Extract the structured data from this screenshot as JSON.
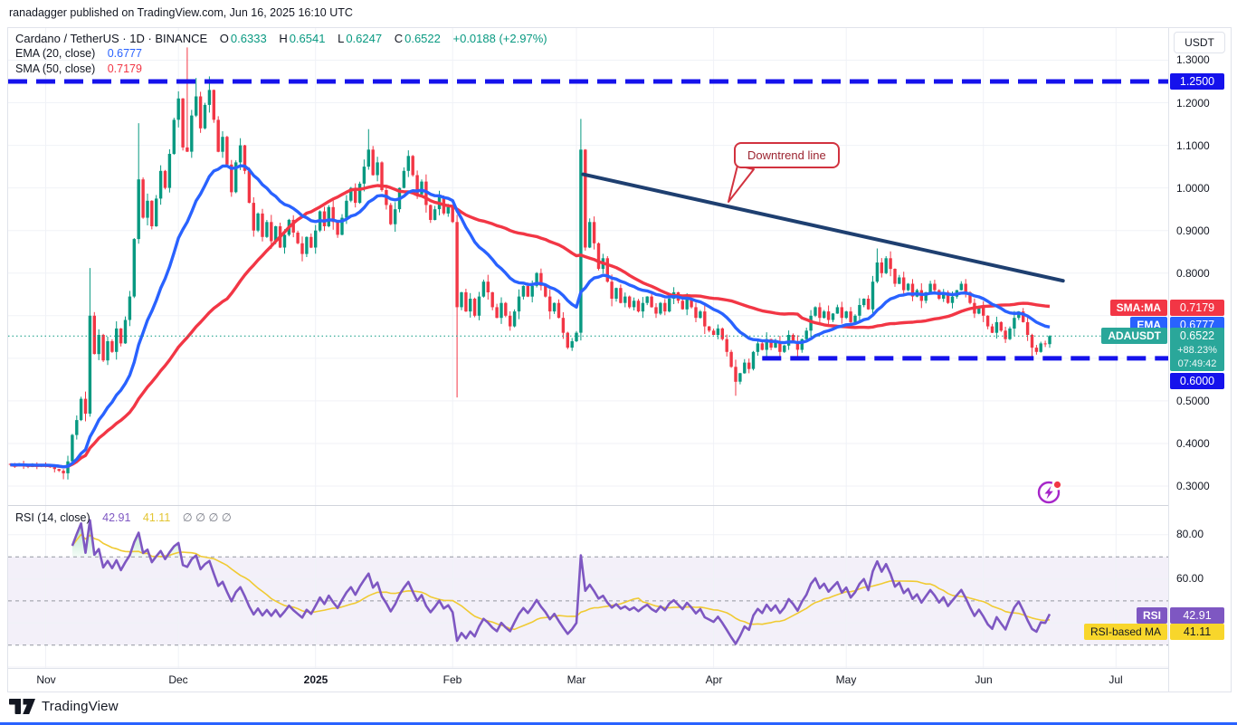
{
  "publish": {
    "text": "ranadagger published on TradingView.com, Jun 16, 2025 16:10 UTC"
  },
  "legend": {
    "title": "Cardano / TetherUS · 1D · BINANCE",
    "o_label": "O",
    "o": "0.6333",
    "h_label": "H",
    "h": "0.6541",
    "l_label": "L",
    "l": "0.6247",
    "c_label": "C",
    "c": "0.6522",
    "change": "+0.0188 (+2.97%)",
    "ema_label": "EMA (20, close)",
    "ema_value": "0.6777",
    "sma_label": "SMA (50, close)",
    "sma_value": "0.7179"
  },
  "rsi_legend": {
    "label": "RSI (14, close)",
    "value": "42.91",
    "ma_value": "41.11",
    "empties": "∅ ∅ ∅ ∅"
  },
  "callout": {
    "text": "Downtrend line"
  },
  "axis": {
    "currency": "USDT",
    "resistance_label": "1.2500",
    "support_label": "0.6000",
    "sma_tag": "SMA:MA",
    "sma_value": "0.7179",
    "ema_tag": "EMA",
    "ema_value": "0.6777",
    "symbol_tag": "ADAUSDT",
    "price": "0.6522",
    "change_pct": "+88.23%",
    "countdown": "07:49:42",
    "rsi_tag": "RSI",
    "rsi_value": "42.91",
    "rsi_ma_tag": "RSI-based MA",
    "rsi_ma_value": "41.11"
  },
  "footer": {
    "brand": "TradingView"
  },
  "chart_data": {
    "type": "candlestick",
    "title": "Cardano / TetherUS · 1D · BINANCE",
    "symbol": "ADAUSDT",
    "interval": "1D",
    "ohlc_last": {
      "open": 0.6333,
      "high": 0.6541,
      "low": 0.6247,
      "close": 0.6522,
      "change_abs": "+0.0188",
      "change_pct": "+2.97%"
    },
    "ylim": [
      0.2554,
      1.3754
    ],
    "xlim_days": [
      -0.5,
      261.8
    ],
    "grid_prices": [
      1.3,
      1.2,
      1.1,
      1.0,
      0.9,
      0.8,
      0.7,
      0.6,
      0.5,
      0.4,
      0.3
    ],
    "price_ticks": [
      [
        1.3,
        "1.3000"
      ],
      [
        1.2,
        "1.2000"
      ],
      [
        1.1,
        "1.1000"
      ],
      [
        1.0,
        "1.0000"
      ],
      [
        0.9,
        "0.9000"
      ],
      [
        0.8,
        "0.8000"
      ],
      [
        0.5,
        "0.5000"
      ],
      [
        0.4,
        "0.4000"
      ],
      [
        0.3,
        "0.3000"
      ]
    ],
    "months": [
      {
        "label": "Nov",
        "day": 8
      },
      {
        "label": "Dec",
        "day": 38
      },
      {
        "label": "2025",
        "day": 69,
        "bold": true
      },
      {
        "label": "Feb",
        "day": 100
      },
      {
        "label": "Mar",
        "day": 128
      },
      {
        "label": "Apr",
        "day": 159
      },
      {
        "label": "May",
        "day": 189
      },
      {
        "label": "Jun",
        "day": 220
      },
      {
        "label": "Jul",
        "day": 250
      }
    ],
    "open_first": 0.352,
    "closes": [
      0.35,
      0.347,
      0.352,
      0.348,
      0.345,
      0.35,
      0.346,
      0.351,
      0.348,
      0.344,
      0.34,
      0.336,
      0.33,
      0.358,
      0.42,
      0.455,
      0.505,
      0.47,
      0.7,
      0.61,
      0.655,
      0.595,
      0.64,
      0.615,
      0.67,
      0.635,
      0.69,
      0.745,
      0.88,
      1.02,
      0.93,
      0.97,
      0.91,
      0.975,
      1.04,
      1.0,
      1.08,
      1.16,
      1.21,
      1.095,
      1.085,
      1.17,
      1.215,
      1.14,
      1.195,
      1.23,
      1.16,
      1.085,
      1.12,
      1.055,
      0.99,
      1.06,
      1.1,
      1.04,
      0.965,
      0.9,
      0.94,
      0.885,
      0.92,
      0.875,
      0.91,
      0.86,
      0.89,
      0.925,
      0.895,
      0.87,
      0.845,
      0.885,
      0.86,
      0.9,
      0.945,
      0.91,
      0.955,
      0.92,
      0.89,
      0.93,
      0.97,
      1.0,
      0.965,
      1.01,
      1.05,
      1.09,
      1.03,
      1.06,
      0.995,
      0.96,
      0.915,
      0.95,
      1.0,
      1.04,
      1.075,
      1.03,
      0.985,
      1.015,
      0.96,
      0.925,
      0.95,
      0.98,
      0.94,
      0.955,
      0.92,
      0.72,
      0.755,
      0.71,
      0.74,
      0.7,
      0.745,
      0.78,
      0.755,
      0.72,
      0.695,
      0.73,
      0.7,
      0.675,
      0.71,
      0.745,
      0.77,
      0.745,
      0.77,
      0.8,
      0.77,
      0.745,
      0.71,
      0.73,
      0.695,
      0.66,
      0.625,
      0.64,
      0.66,
      1.09,
      0.86,
      0.92,
      0.87,
      0.81,
      0.835,
      0.78,
      0.74,
      0.765,
      0.73,
      0.745,
      0.72,
      0.735,
      0.71,
      0.73,
      0.745,
      0.72,
      0.705,
      0.73,
      0.71,
      0.74,
      0.755,
      0.735,
      0.715,
      0.74,
      0.72,
      0.695,
      0.71,
      0.675,
      0.665,
      0.655,
      0.67,
      0.645,
      0.615,
      0.58,
      0.545,
      0.565,
      0.59,
      0.575,
      0.615,
      0.635,
      0.62,
      0.645,
      0.625,
      0.64,
      0.615,
      0.63,
      0.655,
      0.64,
      0.62,
      0.645,
      0.665,
      0.7,
      0.72,
      0.695,
      0.71,
      0.69,
      0.705,
      0.72,
      0.695,
      0.71,
      0.685,
      0.7,
      0.725,
      0.74,
      0.715,
      0.78,
      0.825,
      0.8,
      0.835,
      0.81,
      0.775,
      0.79,
      0.76,
      0.775,
      0.745,
      0.76,
      0.735,
      0.755,
      0.775,
      0.76,
      0.74,
      0.755,
      0.73,
      0.745,
      0.76,
      0.775,
      0.755,
      0.73,
      0.705,
      0.72,
      0.7,
      0.675,
      0.66,
      0.685,
      0.665,
      0.645,
      0.67,
      0.695,
      0.71,
      0.685,
      0.655,
      0.625,
      0.615,
      0.635,
      0.6333,
      0.6522
    ],
    "wick_up": [
      0.2,
      0.9,
      0.4,
      1.4,
      0.1,
      0.7,
      1.1
    ],
    "wick_dn": [
      0.6,
      0.1,
      1.2,
      0.3,
      0.9,
      0.2,
      1.5
    ],
    "overrides": {
      "12": {
        "l": 0.316
      },
      "18": {
        "h": 0.812
      },
      "29": {
        "h": 1.152
      },
      "40": {
        "h": 1.33
      },
      "42": {
        "h": 1.258
      },
      "45": {
        "h": 1.262
      },
      "81": {
        "h": 1.138
      },
      "101": {
        "l": 0.508
      },
      "129": {
        "h": 1.162
      },
      "164": {
        "l": 0.512
      },
      "196": {
        "h": 0.858
      },
      "231": {
        "l": 0.598
      },
      "235": {
        "h": 0.6541,
        "l": 0.6247
      }
    },
    "levels": {
      "resistance": 1.25,
      "support": 0.6,
      "support_from_day": 170,
      "current_price": 0.6522,
      "current_change_pct": "+88.23%",
      "bar_countdown": "07:49:42"
    },
    "trendline": {
      "from_day": 129.5,
      "from_price": 1.032,
      "to_day": 238,
      "to_price": 0.782,
      "label": "Downtrend line"
    },
    "indicators": {
      "ema": {
        "label": "EMA (20, close)",
        "period": 20,
        "value": 0.6777,
        "color": "#2962ff"
      },
      "sma": {
        "label": "SMA (50, close)",
        "period": 50,
        "value": 0.7179,
        "color": "#f23645"
      },
      "rsi": {
        "label": "RSI (14, close)",
        "period": 14,
        "value": 42.91,
        "ma_period": 14,
        "ma_value": 41.11,
        "color": "#7e57c2",
        "ma_color": "#f0ca33",
        "overbought": 70,
        "middle": 50,
        "oversold": 30,
        "ylim": [
          19.6,
          93.06
        ],
        "ticks": [
          [
            80,
            "80.00"
          ],
          [
            60,
            "60.00"
          ]
        ],
        "grid": [
          80,
          60,
          40,
          20
        ]
      }
    },
    "colors": {
      "up": "#089981",
      "down": "#f23645",
      "ray": "#1512ec",
      "trend": "#1e3f70",
      "grid": "#f0f2f7",
      "band": "rgba(126,87,194,0.09)",
      "ob_fill": "#1faf5a",
      "os_fill": "#f23645",
      "badge_symbol": "#2aa79a",
      "badge_rsi": "#7e57c2",
      "badge_rsi_ma": "#f8d62b"
    }
  }
}
